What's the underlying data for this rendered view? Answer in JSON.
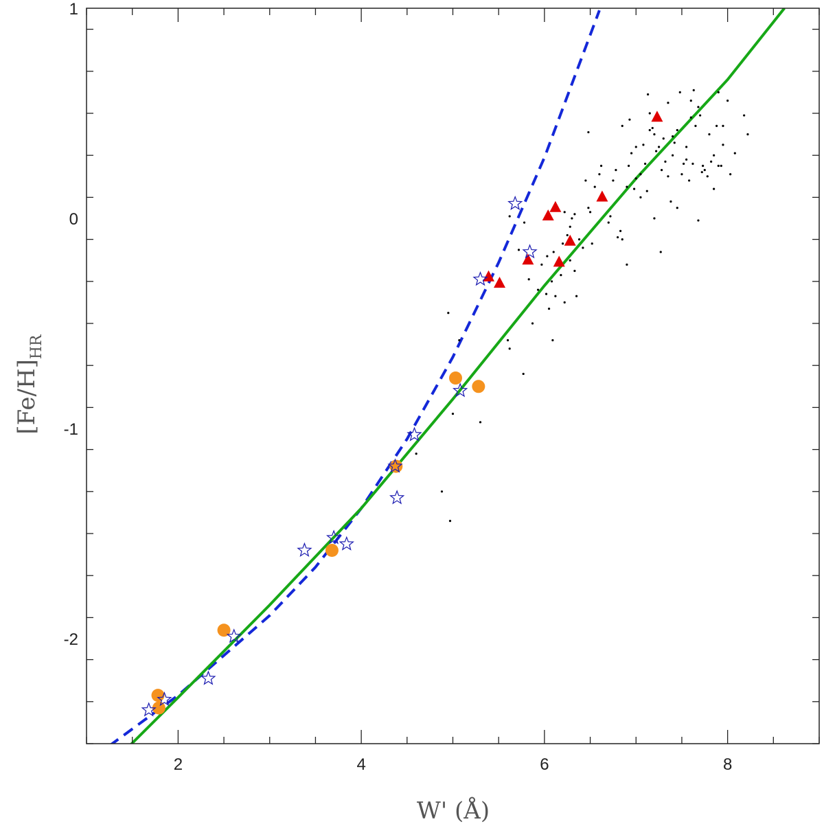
{
  "chart_data": {
    "type": "scatter",
    "title": "",
    "xlabel": "W' (Å)",
    "ylabel_main": "[Fe/H]",
    "ylabel_sub": "HR",
    "xlim": [
      1.0,
      9.0
    ],
    "ylim": [
      -2.5,
      1.0
    ],
    "x_ticks": [
      2,
      4,
      6,
      8
    ],
    "y_ticks": [
      -2,
      -1,
      0,
      1
    ],
    "x_minor_step": 0.5,
    "y_minor_step": 0.2,
    "grid": false,
    "colors": {
      "field_points": "#000000",
      "triangles": "#e00000",
      "circles": "#f5921e",
      "stars": "#1a1ab0",
      "dashed_line": "#1428d8",
      "solid_line": "#17a817"
    },
    "series": [
      {
        "marker": "dot",
        "points": [
          [
            4.95,
            -0.45
          ],
          [
            5.07,
            -0.58
          ],
          [
            5.6,
            -0.58
          ],
          [
            5.62,
            -0.62
          ],
          [
            5.77,
            -0.74
          ],
          [
            5.3,
            -0.97
          ],
          [
            5.0,
            -0.93
          ],
          [
            4.88,
            -1.3
          ],
          [
            4.97,
            -1.44
          ],
          [
            4.6,
            -1.12
          ],
          [
            5.62,
            0.01
          ],
          [
            5.72,
            -0.15
          ],
          [
            5.78,
            -0.02
          ],
          [
            5.83,
            -0.29
          ],
          [
            5.87,
            -0.5
          ],
          [
            5.93,
            -0.34
          ],
          [
            5.97,
            -0.22
          ],
          [
            6.02,
            -0.36
          ],
          [
            6.05,
            -0.43
          ],
          [
            6.09,
            -0.58
          ],
          [
            6.03,
            -0.18
          ],
          [
            6.08,
            -0.3
          ],
          [
            6.12,
            -0.37
          ],
          [
            6.18,
            -0.27
          ],
          [
            6.22,
            -0.4
          ],
          [
            6.2,
            -0.12
          ],
          [
            6.25,
            -0.08
          ],
          [
            6.28,
            -0.2
          ],
          [
            6.33,
            -0.25
          ],
          [
            6.35,
            -0.37
          ],
          [
            6.1,
            -0.16
          ],
          [
            6.22,
            0.03
          ],
          [
            6.28,
            -0.04
          ],
          [
            6.3,
            0.0
          ],
          [
            6.33,
            0.02
          ],
          [
            6.38,
            -0.1
          ],
          [
            6.42,
            -0.14
          ],
          [
            6.45,
            0.18
          ],
          [
            6.48,
            0.05
          ],
          [
            6.5,
            0.03
          ],
          [
            6.52,
            -0.12
          ],
          [
            6.48,
            0.41
          ],
          [
            6.55,
            0.15
          ],
          [
            6.6,
            0.21
          ],
          [
            6.62,
            0.25
          ],
          [
            6.65,
            0.09
          ],
          [
            6.7,
            -0.02
          ],
          [
            6.72,
            0.01
          ],
          [
            6.75,
            0.18
          ],
          [
            6.78,
            0.23
          ],
          [
            6.8,
            -0.09
          ],
          [
            6.83,
            -0.06
          ],
          [
            6.85,
            -0.1
          ],
          [
            6.9,
            0.15
          ],
          [
            6.92,
            0.25
          ],
          [
            6.93,
            0.47
          ],
          [
            6.95,
            0.31
          ],
          [
            6.98,
            0.14
          ],
          [
            7.0,
            0.19
          ],
          [
            7.05,
            0.21
          ],
          [
            7.08,
            0.35
          ],
          [
            7.1,
            0.26
          ],
          [
            7.12,
            0.13
          ],
          [
            7.13,
            0.59
          ],
          [
            7.15,
            0.5
          ],
          [
            7.18,
            0.43
          ],
          [
            7.2,
            0.4
          ],
          [
            7.22,
            0.32
          ],
          [
            7.25,
            0.34
          ],
          [
            7.28,
            0.23
          ],
          [
            7.3,
            0.38
          ],
          [
            7.32,
            0.27
          ],
          [
            7.35,
            0.55
          ],
          [
            7.38,
            0.08
          ],
          [
            7.4,
            0.3
          ],
          [
            7.42,
            0.36
          ],
          [
            7.45,
            0.42
          ],
          [
            7.48,
            0.6
          ],
          [
            7.5,
            0.21
          ],
          [
            7.52,
            0.26
          ],
          [
            7.55,
            0.28
          ],
          [
            7.58,
            0.18
          ],
          [
            7.6,
            0.56
          ],
          [
            7.62,
            0.26
          ],
          [
            7.63,
            0.61
          ],
          [
            7.65,
            0.44
          ],
          [
            7.68,
            0.53
          ],
          [
            7.7,
            0.49
          ],
          [
            7.72,
            0.22
          ],
          [
            7.75,
            0.23
          ],
          [
            7.78,
            0.2
          ],
          [
            7.8,
            0.4
          ],
          [
            7.82,
            0.27
          ],
          [
            7.85,
            0.14
          ],
          [
            7.88,
            0.44
          ],
          [
            7.9,
            0.25
          ],
          [
            7.93,
            0.25
          ],
          [
            7.95,
            0.44
          ],
          [
            8.0,
            0.56
          ],
          [
            8.03,
            0.21
          ],
          [
            8.08,
            0.31
          ],
          [
            8.18,
            0.49
          ],
          [
            8.22,
            0.4
          ],
          [
            7.9,
            0.6
          ],
          [
            7.2,
            0.0
          ],
          [
            7.27,
            -0.16
          ],
          [
            7.68,
            -0.01
          ],
          [
            6.9,
            -0.22
          ],
          [
            7.55,
            0.34
          ],
          [
            7.6,
            0.48
          ],
          [
            7.4,
            0.39
          ],
          [
            7.35,
            0.2
          ],
          [
            7.0,
            0.34
          ],
          [
            7.15,
            0.42
          ],
          [
            6.85,
            0.44
          ],
          [
            7.73,
            0.25
          ],
          [
            7.85,
            0.3
          ],
          [
            7.95,
            0.35
          ],
          [
            7.05,
            0.1
          ],
          [
            7.45,
            0.05
          ]
        ]
      },
      {
        "marker": "triangle",
        "points": [
          [
            7.23,
            0.48
          ],
          [
            6.63,
            0.1
          ],
          [
            6.12,
            0.05
          ],
          [
            6.04,
            0.01
          ],
          [
            6.28,
            -0.11
          ],
          [
            5.82,
            -0.2
          ],
          [
            6.16,
            -0.21
          ],
          [
            5.39,
            -0.28
          ],
          [
            5.51,
            -0.31
          ]
        ]
      },
      {
        "marker": "circle",
        "points": [
          [
            5.03,
            -0.76
          ],
          [
            5.28,
            -0.8
          ],
          [
            4.38,
            -1.18
          ],
          [
            3.68,
            -1.58
          ],
          [
            2.5,
            -1.96
          ],
          [
            1.78,
            -2.27
          ],
          [
            1.79,
            -2.33
          ]
        ]
      },
      {
        "marker": "star",
        "points": [
          [
            5.68,
            0.07
          ],
          [
            5.84,
            -0.16
          ],
          [
            5.3,
            -0.29
          ],
          [
            5.08,
            -0.82
          ],
          [
            4.58,
            -1.03
          ],
          [
            4.37,
            -1.18
          ],
          [
            4.39,
            -1.33
          ],
          [
            3.38,
            -1.58
          ],
          [
            3.7,
            -1.52
          ],
          [
            3.84,
            -1.55
          ],
          [
            2.61,
            -1.99
          ],
          [
            2.33,
            -2.19
          ],
          [
            1.85,
            -2.29
          ],
          [
            1.68,
            -2.34
          ]
        ]
      }
    ],
    "lines": [
      {
        "style": "dashed",
        "color_key": "dashed_line",
        "points": [
          [
            1.25,
            -2.51
          ],
          [
            2.0,
            -2.27
          ],
          [
            2.5,
            -2.08
          ],
          [
            3.0,
            -1.89
          ],
          [
            3.5,
            -1.66
          ],
          [
            4.0,
            -1.38
          ],
          [
            4.5,
            -1.05
          ],
          [
            5.0,
            -0.66
          ],
          [
            5.5,
            -0.21
          ],
          [
            6.0,
            0.29
          ],
          [
            6.6,
            0.99
          ]
        ]
      },
      {
        "style": "solid",
        "color_key": "solid_line",
        "points": [
          [
            1.47,
            -2.51
          ],
          [
            2.0,
            -2.28
          ],
          [
            3.0,
            -1.84
          ],
          [
            4.0,
            -1.38
          ],
          [
            5.0,
            -0.86
          ],
          [
            6.0,
            -0.32
          ],
          [
            7.0,
            0.19
          ],
          [
            8.0,
            0.66
          ],
          [
            8.62,
            1.0
          ]
        ]
      }
    ]
  }
}
